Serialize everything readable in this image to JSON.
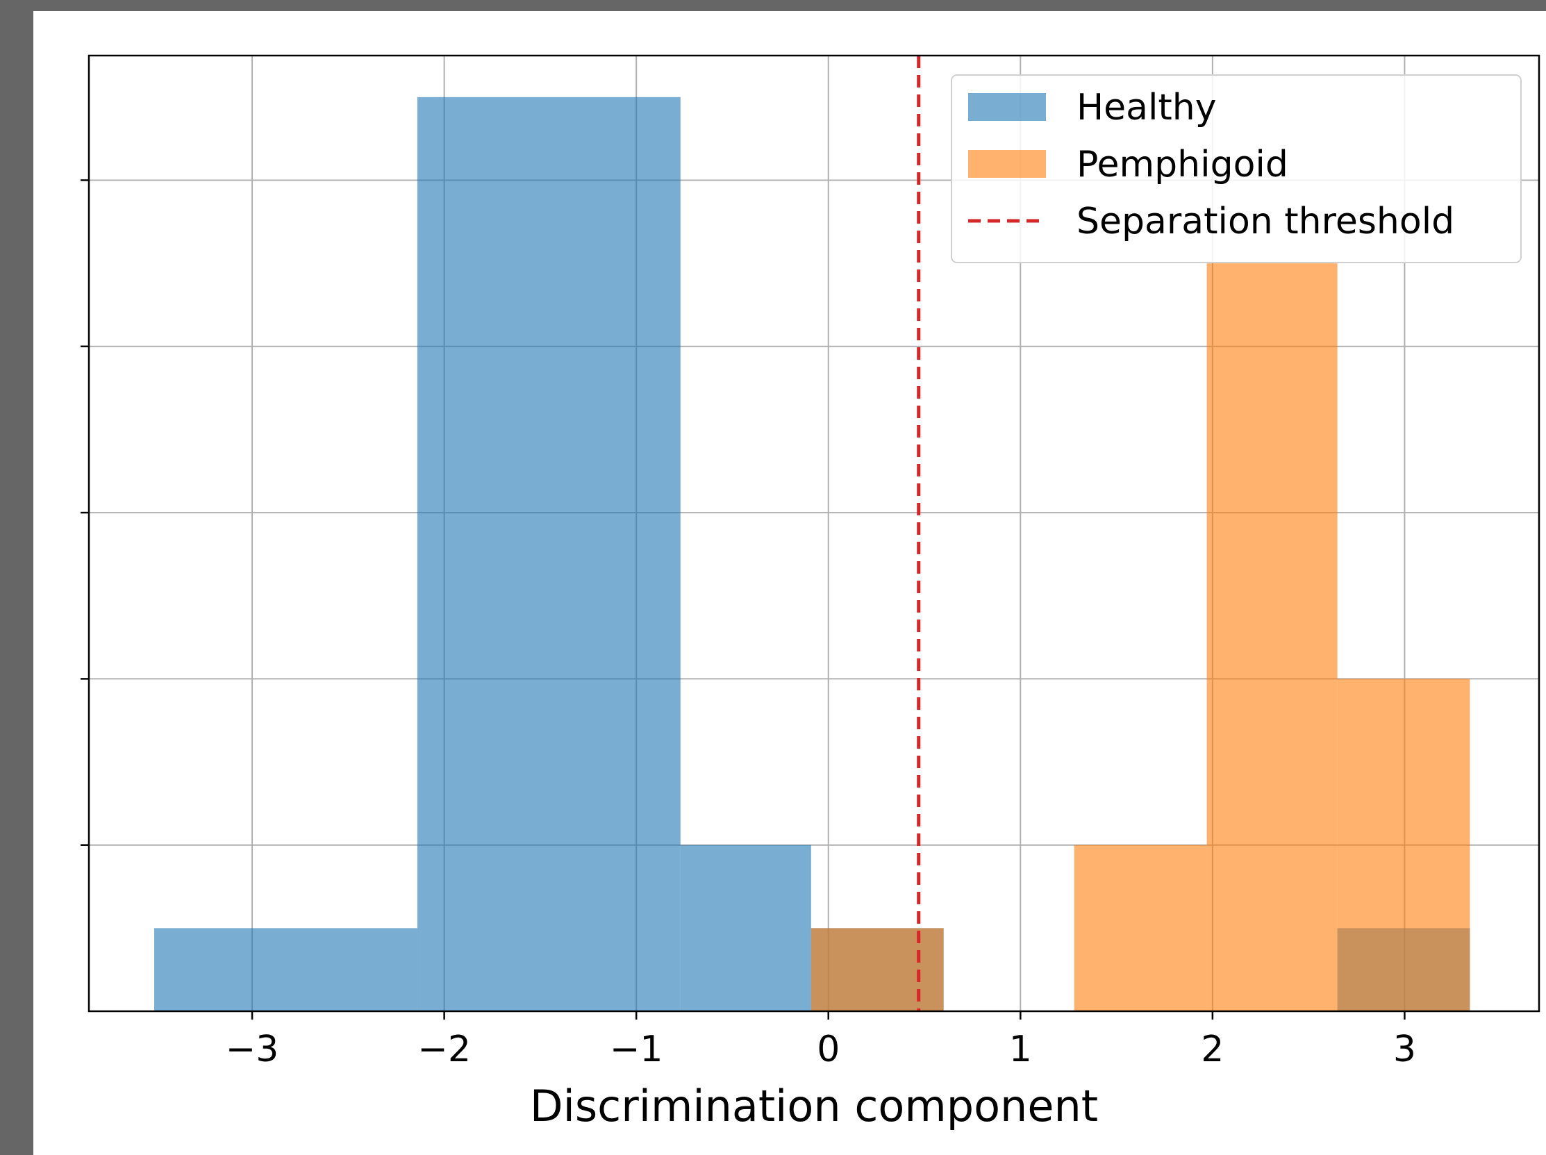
{
  "chart_data": {
    "type": "bar",
    "subtype": "overlapping-histogram",
    "title": "",
    "xlabel": "Discrimination component",
    "ylabel": "",
    "xlim": [
      -3.85,
      3.7
    ],
    "ylim": [
      0,
      11.5
    ],
    "xticks": [
      -3,
      -2,
      -1,
      0,
      1,
      2,
      3
    ],
    "xtick_labels": [
      "−3",
      "−2",
      "−1",
      "0",
      "1",
      "2",
      "3"
    ],
    "yticks": [
      0,
      2,
      4,
      6,
      8,
      10
    ],
    "ytick_labels_visible": false,
    "grid": true,
    "legend_position": "top-right",
    "series": [
      {
        "name": "Healthy",
        "color": "#1f77b4",
        "alpha": 0.6,
        "bins": [
          {
            "x0": -3.51,
            "x1": -2.14,
            "count": 1
          },
          {
            "x0": -2.14,
            "x1": -0.77,
            "count": 11
          },
          {
            "x0": -0.77,
            "x1": -0.09,
            "count": 2
          },
          {
            "x0": -0.09,
            "x1": 0.6,
            "count": 1
          },
          {
            "x0": 2.65,
            "x1": 3.34,
            "count": 1
          }
        ]
      },
      {
        "name": "Pemphigoid",
        "color": "#ff7f0e",
        "alpha": 0.6,
        "bins": [
          {
            "x0": -0.09,
            "x1": 0.6,
            "count": 1
          },
          {
            "x0": 1.28,
            "x1": 1.97,
            "count": 2
          },
          {
            "x0": 1.97,
            "x1": 2.65,
            "count": 9
          },
          {
            "x0": 2.65,
            "x1": 3.34,
            "count": 4
          }
        ]
      }
    ],
    "threshold": {
      "name": "Separation threshold",
      "x": 0.47,
      "color": "#d62728",
      "style": "dashed"
    }
  }
}
